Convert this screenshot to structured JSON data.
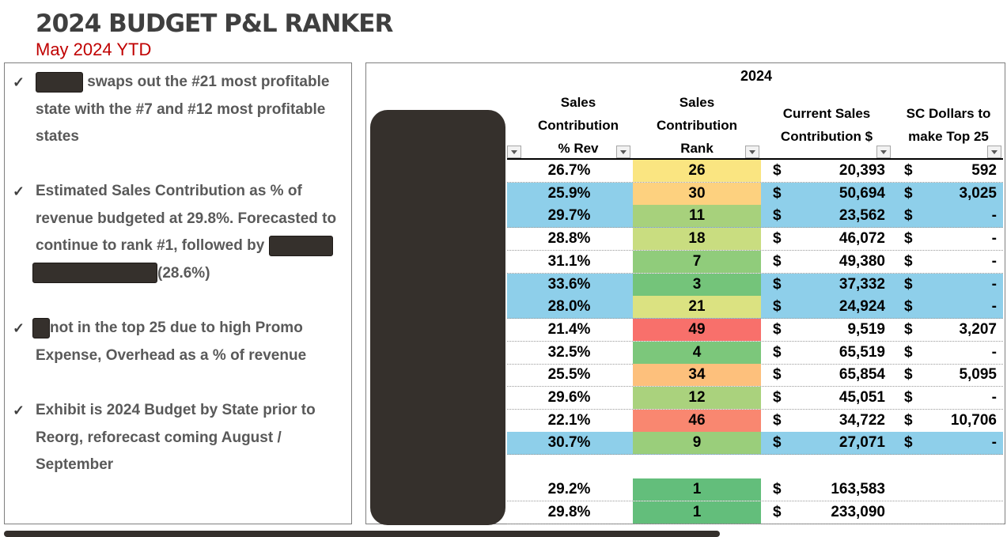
{
  "title": "2024 BUDGET P&L RANKER",
  "subtitle": "May 2024 YTD",
  "bullets": {
    "check_icon": "✓",
    "b1": {
      "text": "swaps out the #21 most profitable state with the #7 and #12 most profitable states"
    },
    "b2": {
      "text_a": "Estimated Sales Contribution as % of revenue budgeted at 29.8%. Forecasted to continue to rank #1, followed by",
      "text_b": "(28.6%)"
    },
    "b3": {
      "text": "not in the top 25 due to high Promo Expense, Overhead as a % of revenue"
    },
    "b4": {
      "text": "Exhibit is 2024 Budget by State prior to Reorg, reforecast coming August / September"
    }
  },
  "table": {
    "year": "2024",
    "headers": {
      "pct": [
        "Sales",
        "Contribution",
        "% Rev"
      ],
      "rank": [
        "Sales",
        "Contribution",
        "Rank"
      ],
      "current": [
        "Current Sales",
        "Contribution $"
      ],
      "sc": [
        "SC Dollars to",
        "make Top 25"
      ]
    },
    "rows": [
      {
        "pct": "26.7%",
        "rank": "26",
        "d1": "$",
        "v1": "20,393",
        "d2": "$",
        "v2": "592",
        "blue": false,
        "rank_color": "#fae581"
      },
      {
        "pct": "25.9%",
        "rank": "30",
        "d1": "$",
        "v1": "50,694",
        "d2": "$",
        "v2": "3,025",
        "blue": true,
        "rank_color": "#fdd17f"
      },
      {
        "pct": "29.7%",
        "rank": "11",
        "d1": "$",
        "v1": "23,562",
        "d2": "$",
        "v2": "-",
        "blue": true,
        "rank_color": "#a7d17c"
      },
      {
        "pct": "28.8%",
        "rank": "18",
        "d1": "$",
        "v1": "46,072",
        "d2": "$",
        "v2": "-",
        "blue": false,
        "rank_color": "#c9dd80"
      },
      {
        "pct": "31.1%",
        "rank": "7",
        "d1": "$",
        "v1": "49,380",
        "d2": "$",
        "v2": "-",
        "blue": false,
        "rank_color": "#90cc7b"
      },
      {
        "pct": "33.6%",
        "rank": "3",
        "d1": "$",
        "v1": "37,332",
        "d2": "$",
        "v2": "-",
        "blue": true,
        "rank_color": "#74c47a"
      },
      {
        "pct": "28.0%",
        "rank": "21",
        "d1": "$",
        "v1": "24,924",
        "d2": "$",
        "v2": "-",
        "blue": true,
        "rank_color": "#dbe281"
      },
      {
        "pct": "21.4%",
        "rank": "49",
        "d1": "$",
        "v1": "9,519",
        "d2": "$",
        "v2": "3,207",
        "blue": false,
        "rank_color": "#f8706b"
      },
      {
        "pct": "32.5%",
        "rank": "4",
        "d1": "$",
        "v1": "65,519",
        "d2": "$",
        "v2": "-",
        "blue": false,
        "rank_color": "#7cc77b"
      },
      {
        "pct": "25.5%",
        "rank": "34",
        "d1": "$",
        "v1": "65,854",
        "d2": "$",
        "v2": "5,095",
        "blue": false,
        "rank_color": "#fdc07c"
      },
      {
        "pct": "29.6%",
        "rank": "12",
        "d1": "$",
        "v1": "45,051",
        "d2": "$",
        "v2": "-",
        "blue": false,
        "rank_color": "#aad27d"
      },
      {
        "pct": "22.1%",
        "rank": "46",
        "d1": "$",
        "v1": "34,722",
        "d2": "$",
        "v2": "10,706",
        "blue": false,
        "rank_color": "#f98770"
      },
      {
        "pct": "30.7%",
        "rank": "9",
        "d1": "$",
        "v1": "27,071",
        "d2": "$",
        "v2": "-",
        "blue": true,
        "rank_color": "#9ace7b"
      }
    ],
    "totals": [
      {
        "pct": "29.2%",
        "rank": "1",
        "d1": "$",
        "v1": "163,583",
        "rank_color": "#63be7b"
      },
      {
        "pct": "29.8%",
        "rank": "1",
        "d1": "$",
        "v1": "233,090",
        "rank_color": "#63be7b"
      }
    ]
  }
}
